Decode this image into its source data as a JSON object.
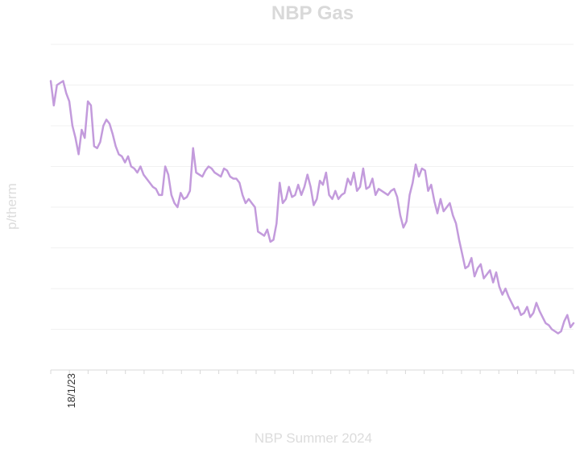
{
  "chart_data": {
    "type": "line",
    "title": "NBP Gas",
    "xlabel": "NBP Summer 2024",
    "ylabel": "p/therm",
    "x_tick_labels": [
      "18/1/23"
    ],
    "y_tick_labels_visible": false,
    "grid": true,
    "legend": "none",
    "series_color": "#c39bdc",
    "y_range": [
      0,
      8
    ],
    "n_x_ticks": 29,
    "series": [
      {
        "values": [
          7.1,
          6.5,
          7.0,
          7.05,
          7.1,
          6.8,
          6.6,
          6.0,
          5.7,
          5.3,
          5.9,
          5.7,
          6.6,
          6.5,
          5.5,
          5.45,
          5.6,
          6.0,
          6.15,
          6.05,
          5.8,
          5.5,
          5.3,
          5.25,
          5.1,
          5.25,
          5.0,
          4.95,
          4.85,
          5.0,
          4.8,
          4.7,
          4.6,
          4.5,
          4.45,
          4.3,
          4.3,
          5.0,
          4.8,
          4.3,
          4.1,
          4.0,
          4.35,
          4.2,
          4.25,
          4.4,
          5.45,
          4.85,
          4.8,
          4.75,
          4.9,
          5.0,
          4.95,
          4.85,
          4.8,
          4.75,
          4.95,
          4.9,
          4.75,
          4.7,
          4.7,
          4.6,
          4.3,
          4.1,
          4.2,
          4.1,
          4.0,
          3.4,
          3.35,
          3.3,
          3.45,
          3.15,
          3.2,
          3.6,
          4.6,
          4.1,
          4.2,
          4.5,
          4.25,
          4.3,
          4.55,
          4.3,
          4.5,
          4.8,
          4.5,
          4.05,
          4.2,
          4.65,
          4.55,
          4.85,
          4.3,
          4.2,
          4.4,
          4.2,
          4.3,
          4.35,
          4.7,
          4.55,
          4.85,
          4.4,
          4.5,
          4.95,
          4.45,
          4.5,
          4.7,
          4.3,
          4.45,
          4.4,
          4.35,
          4.3,
          4.4,
          4.45,
          4.25,
          3.8,
          3.5,
          3.65,
          4.3,
          4.6,
          5.05,
          4.75,
          4.95,
          4.9,
          4.4,
          4.55,
          4.15,
          3.85,
          4.2,
          3.9,
          4.0,
          4.1,
          3.8,
          3.6,
          3.2,
          2.85,
          2.5,
          2.55,
          2.75,
          2.3,
          2.5,
          2.6,
          2.25,
          2.35,
          2.45,
          2.15,
          2.4,
          2.05,
          1.85,
          2.0,
          1.8,
          1.65,
          1.5,
          1.55,
          1.35,
          1.4,
          1.55,
          1.3,
          1.4,
          1.65,
          1.45,
          1.3,
          1.15,
          1.1,
          1.0,
          0.95,
          0.9,
          0.95,
          1.2,
          1.35,
          1.05,
          1.15
        ]
      }
    ]
  }
}
